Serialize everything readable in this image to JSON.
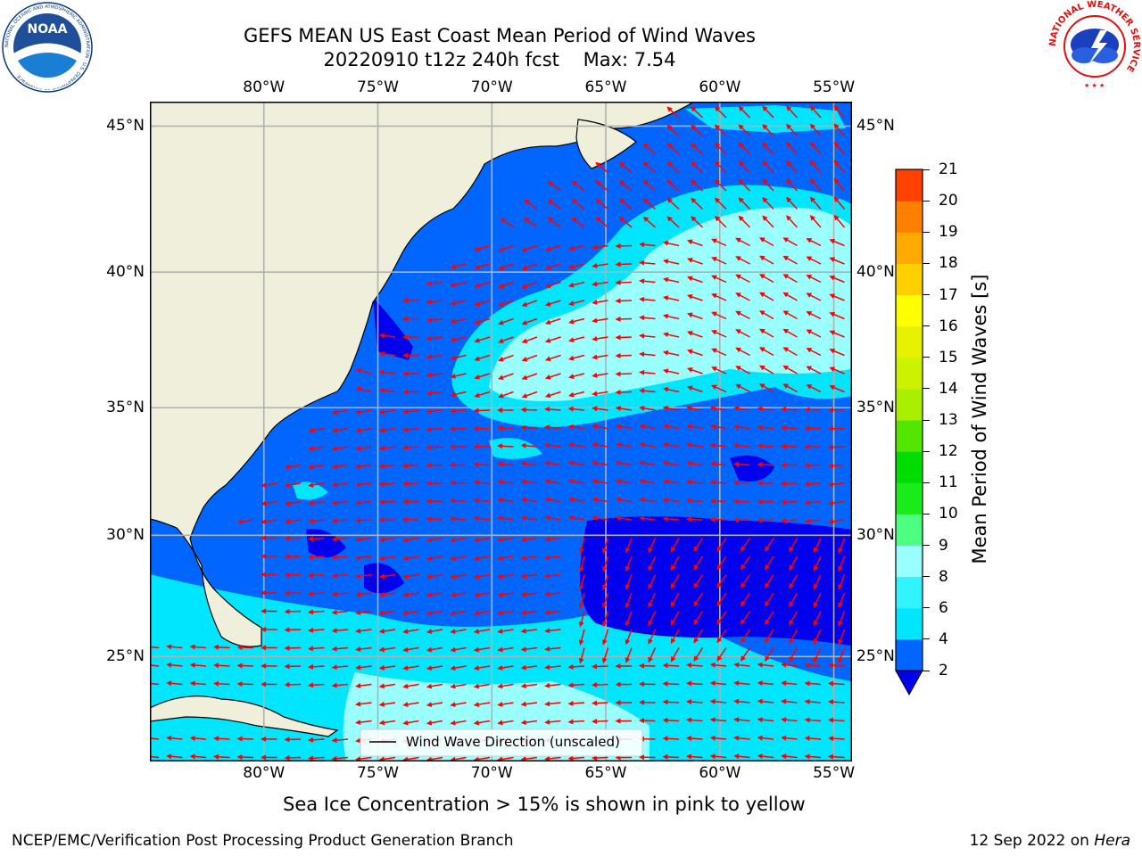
{
  "title": {
    "line1": "GEFS MEAN US East Coast Mean Period of Wind Waves",
    "line2": "20220910 t12z 240h fcst    Max: 7.54"
  },
  "logos": {
    "noaa_text": "NOAA",
    "noaa_ring": "NATIONAL OCEANIC AND ATMOSPHERIC ADMINISTRATION · U.S. DEPARTMENT OF COMMERCE",
    "nws_ring": "NATIONAL WEATHER SERVICE"
  },
  "map": {
    "lon_range": [
      -85,
      -54.2
    ],
    "lat_range": [
      20.5,
      45.8
    ],
    "lon_ticks": [
      "80°W",
      "75°W",
      "70°W",
      "65°W",
      "60°W",
      "55°W"
    ],
    "lat_ticks": [
      "45°N",
      "40°N",
      "35°N",
      "30°N",
      "25°N"
    ],
    "grid": true,
    "land_color": "#efefdc",
    "arrow_color": "#ff0000",
    "legend_label": "Wind Wave Direction (unscaled)"
  },
  "colorbar": {
    "label": "Mean Period of Wind Waves [s]",
    "ticks": [
      "2",
      "4",
      "6",
      "8",
      "9",
      "10",
      "11",
      "12",
      "13",
      "14",
      "15",
      "16",
      "17",
      "18",
      "19",
      "20",
      "21"
    ],
    "colors": [
      "#0066ff",
      "#00e6ff",
      "#33f2ff",
      "#99ffff",
      "#4dff80",
      "#1aeb1a",
      "#00dd00",
      "#55e600",
      "#aaee00",
      "#ccf200",
      "#e6f200",
      "#ffff00",
      "#ffd000",
      "#ffaa00",
      "#ff8000",
      "#ff4000",
      "#ff0000"
    ],
    "extend_color": "#0000ee"
  },
  "caption": "Sea Ice Concentration > 15% is shown in pink to yellow",
  "footer": {
    "left": "NCEP/EMC/Verification Post Processing Product Generation Branch",
    "right_date": "12 Sep 2022 on ",
    "right_machine": "Hera"
  }
}
